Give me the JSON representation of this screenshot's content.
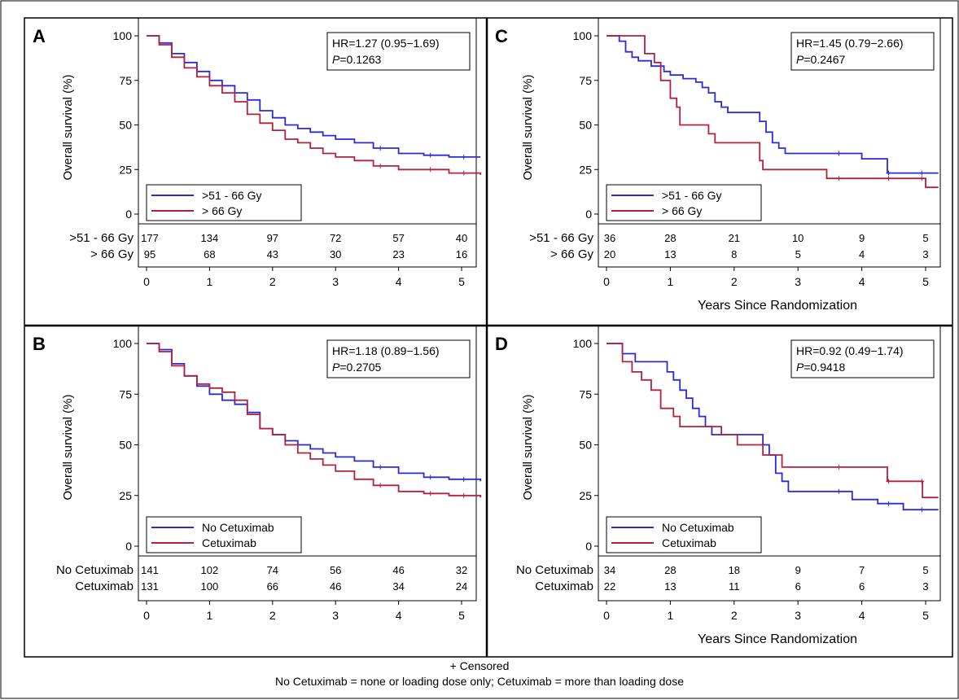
{
  "footnotes": {
    "censored": "+ Censored",
    "definition": "No Cetuximab = none or loading dose only; Cetuximab = more than loading dose"
  },
  "colors": {
    "series_1": "#2b2bd6",
    "series_2": "#b3213c"
  },
  "chart_data": [
    {
      "id": "A",
      "type": "line",
      "panel_label": "A",
      "ylabel": "Overall survival (%)",
      "xlabel": "",
      "xlim": [
        0,
        5.3
      ],
      "ylim": [
        0,
        100
      ],
      "xticks": [
        0,
        1,
        2,
        3,
        4,
        5
      ],
      "yticks": [
        0,
        25,
        50,
        75,
        100
      ],
      "stats": {
        "hr": "HR=1.27 (0.95−1.69)",
        "p_prefix": "P",
        "p_value": "=0.1263"
      },
      "legend_position": "bottom-left",
      "series": [
        {
          "name": ">51 - 66 Gy",
          "color": "#2b2bd6",
          "x": [
            0,
            0.2,
            0.4,
            0.6,
            0.8,
            1.0,
            1.2,
            1.4,
            1.6,
            1.8,
            2.0,
            2.2,
            2.4,
            2.6,
            2.8,
            3.0,
            3.3,
            3.6,
            4.0,
            4.4,
            4.8,
            5.3
          ],
          "y": [
            100,
            96,
            90,
            85,
            80,
            75,
            72,
            68,
            64,
            58,
            54,
            50,
            48,
            46,
            44,
            42,
            40,
            37,
            34,
            33,
            32,
            32
          ]
        },
        {
          "name": "> 66 Gy",
          "color": "#b3213c",
          "x": [
            0,
            0.2,
            0.4,
            0.6,
            0.8,
            1.0,
            1.2,
            1.4,
            1.6,
            1.8,
            2.0,
            2.2,
            2.4,
            2.6,
            2.8,
            3.0,
            3.3,
            3.6,
            4.0,
            4.4,
            4.8,
            5.3
          ],
          "y": [
            100,
            95,
            88,
            82,
            77,
            72,
            68,
            63,
            56,
            51,
            47,
            42,
            40,
            37,
            34,
            32,
            30,
            27,
            25,
            25,
            23,
            22
          ]
        }
      ],
      "risk_table": [
        {
          "label": ">51 - 66 Gy",
          "counts": [
            "177",
            "134",
            "97",
            "72",
            "57",
            "40"
          ]
        },
        {
          "label": "> 66 Gy",
          "counts": [
            "95",
            "68",
            "43",
            "30",
            "23",
            "16"
          ]
        }
      ]
    },
    {
      "id": "C",
      "type": "line",
      "panel_label": "C",
      "ylabel": "Overall survival (%)",
      "xlabel": "Years Since Randomization",
      "xlim": [
        0,
        5.2
      ],
      "ylim": [
        0,
        100
      ],
      "xticks": [
        0,
        1,
        2,
        3,
        4,
        5
      ],
      "yticks": [
        0,
        25,
        50,
        75,
        100
      ],
      "stats": {
        "hr": "HR=1.45 (0.79−2.66)",
        "p_prefix": "P",
        "p_value": "=0.2467"
      },
      "legend_position": "bottom-left",
      "series": [
        {
          "name": ">51 - 66 Gy",
          "color": "#2b2bd6",
          "x": [
            0,
            0.2,
            0.3,
            0.4,
            0.5,
            0.7,
            0.9,
            1.0,
            1.2,
            1.4,
            1.5,
            1.6,
            1.7,
            1.8,
            1.9,
            2.1,
            2.4,
            2.5,
            2.6,
            2.7,
            2.8,
            3.0,
            3.4,
            4.0,
            4.3,
            4.4,
            5.2
          ],
          "y": [
            100,
            97,
            91,
            88,
            86,
            83,
            80,
            78,
            76,
            74,
            71,
            68,
            63,
            60,
            57,
            57,
            52,
            46,
            40,
            37,
            34,
            34,
            34,
            31,
            31,
            23,
            23
          ]
        },
        {
          "name": "> 66 Gy",
          "color": "#b3213c",
          "x": [
            0,
            0.55,
            0.6,
            0.75,
            0.85,
            1.0,
            1.1,
            1.15,
            1.5,
            1.6,
            1.7,
            2.3,
            2.4,
            2.45,
            3.2,
            3.45,
            4.0,
            5.0,
            5.2
          ],
          "y": [
            100,
            100,
            90,
            85,
            75,
            65,
            60,
            50,
            50,
            45,
            40,
            40,
            30,
            25,
            25,
            20,
            20,
            15,
            15
          ]
        }
      ],
      "risk_table": [
        {
          "label": ">51 - 66 Gy",
          "counts": [
            "36",
            "28",
            "21",
            "10",
            "9",
            "5"
          ]
        },
        {
          "label": "> 66 Gy",
          "counts": [
            "20",
            "13",
            "8",
            "5",
            "4",
            "3"
          ]
        }
      ]
    },
    {
      "id": "B",
      "type": "line",
      "panel_label": "B",
      "ylabel": "Overall survival (%)",
      "xlabel": "",
      "xlim": [
        0,
        5.3
      ],
      "ylim": [
        0,
        100
      ],
      "xticks": [
        0,
        1,
        2,
        3,
        4,
        5
      ],
      "yticks": [
        0,
        25,
        50,
        75,
        100
      ],
      "stats": {
        "hr": "HR=1.18 (0.89−1.56)",
        "p_prefix": "P",
        "p_value": "=0.2705"
      },
      "legend_position": "bottom-left",
      "series": [
        {
          "name": "No Cetuximab",
          "color": "#2b2bd6",
          "x": [
            0,
            0.2,
            0.4,
            0.6,
            0.8,
            1.0,
            1.2,
            1.4,
            1.6,
            1.8,
            2.0,
            2.2,
            2.4,
            2.6,
            2.8,
            3.0,
            3.3,
            3.6,
            4.0,
            4.4,
            4.8,
            5.3
          ],
          "y": [
            100,
            97,
            90,
            84,
            79,
            75,
            72,
            70,
            66,
            58,
            55,
            52,
            50,
            48,
            46,
            44,
            42,
            39,
            36,
            34,
            33,
            32
          ]
        },
        {
          "name": "Cetuximab",
          "color": "#b3213c",
          "x": [
            0,
            0.2,
            0.4,
            0.6,
            0.8,
            1.0,
            1.2,
            1.4,
            1.6,
            1.8,
            2.0,
            2.2,
            2.4,
            2.6,
            2.8,
            3.0,
            3.3,
            3.6,
            4.0,
            4.4,
            4.8,
            5.3
          ],
          "y": [
            100,
            96,
            89,
            84,
            80,
            78,
            76,
            72,
            65,
            58,
            55,
            50,
            46,
            43,
            40,
            37,
            33,
            30,
            27,
            26,
            25,
            24
          ]
        }
      ],
      "risk_table": [
        {
          "label": "No Cetuximab",
          "counts": [
            "141",
            "102",
            "74",
            "56",
            "46",
            "32"
          ]
        },
        {
          "label": "Cetuximab",
          "counts": [
            "131",
            "100",
            "66",
            "46",
            "34",
            "24"
          ]
        }
      ]
    },
    {
      "id": "D",
      "type": "line",
      "panel_label": "D",
      "ylabel": "Overall survival (%)",
      "xlabel": "Years Since Randomization",
      "xlim": [
        0,
        5.2
      ],
      "ylim": [
        0,
        100
      ],
      "xticks": [
        0,
        1,
        2,
        3,
        4,
        5
      ],
      "yticks": [
        0,
        25,
        50,
        75,
        100
      ],
      "stats": {
        "hr": "HR=0.92 (0.49−1.74)",
        "p_prefix": "P",
        "p_value": "=0.9418"
      },
      "legend_position": "bottom-left",
      "series": [
        {
          "name": "No Cetuximab",
          "color": "#2b2bd6",
          "x": [
            0,
            0.25,
            0.45,
            0.7,
            0.95,
            1.05,
            1.15,
            1.25,
            1.35,
            1.45,
            1.55,
            1.65,
            1.75,
            2.4,
            2.45,
            2.55,
            2.65,
            2.75,
            2.85,
            3.0,
            3.5,
            3.85,
            4.25,
            4.65,
            5.2
          ],
          "y": [
            100,
            95,
            91,
            91,
            86,
            82,
            77,
            73,
            68,
            64,
            59,
            55,
            55,
            55,
            50,
            45,
            36,
            32,
            27,
            27,
            27,
            23,
            21,
            18,
            18
          ]
        },
        {
          "name": "Cetuximab",
          "color": "#b3213c",
          "x": [
            0,
            0.15,
            0.25,
            0.4,
            0.55,
            0.7,
            0.85,
            1.05,
            1.15,
            1.65,
            1.8,
            2.05,
            2.45,
            2.75,
            4.35,
            4.4,
            4.95,
            5.2
          ],
          "y": [
            100,
            100,
            91,
            86,
            82,
            77,
            68,
            64,
            59,
            59,
            55,
            50,
            45,
            39,
            39,
            32,
            24,
            24
          ]
        }
      ],
      "risk_table": [
        {
          "label": "No Cetuximab",
          "counts": [
            "34",
            "28",
            "18",
            "9",
            "7",
            "5"
          ]
        },
        {
          "label": "Cetuximab",
          "counts": [
            "22",
            "13",
            "11",
            "6",
            "6",
            "3"
          ]
        }
      ]
    }
  ]
}
